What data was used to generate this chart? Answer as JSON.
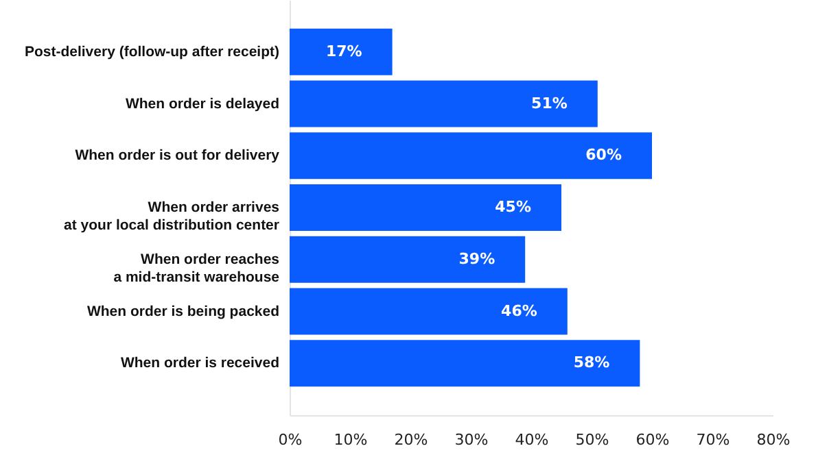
{
  "chart_data": {
    "type": "bar",
    "orientation": "horizontal",
    "categories": [
      "Post-delivery (follow-up after receipt)",
      "When order is delayed",
      "When order is out for delivery",
      "When order arrives\nat your local distribution center",
      "When order reaches\na mid-transit warehouse",
      "When order is being packed",
      "When order is received"
    ],
    "values": [
      17,
      51,
      60,
      45,
      39,
      46,
      58
    ],
    "value_labels": [
      "17%",
      "51%",
      "60%",
      "45%",
      "39%",
      "46%",
      "58%"
    ],
    "color": "#0a5cff",
    "xlim": [
      0,
      80
    ],
    "xticks": [
      {
        "value": 0,
        "label": "0%"
      },
      {
        "value": 10,
        "label": "10%"
      },
      {
        "value": 20,
        "label": "20%"
      },
      {
        "value": 30,
        "label": "30%"
      },
      {
        "value": 40,
        "label": "40%"
      },
      {
        "value": 50,
        "label": "50%"
      },
      {
        "value": 60,
        "label": "60%"
      },
      {
        "value": 70,
        "label": "70%"
      },
      {
        "value": 80,
        "label": "80%"
      }
    ],
    "grid": false
  }
}
